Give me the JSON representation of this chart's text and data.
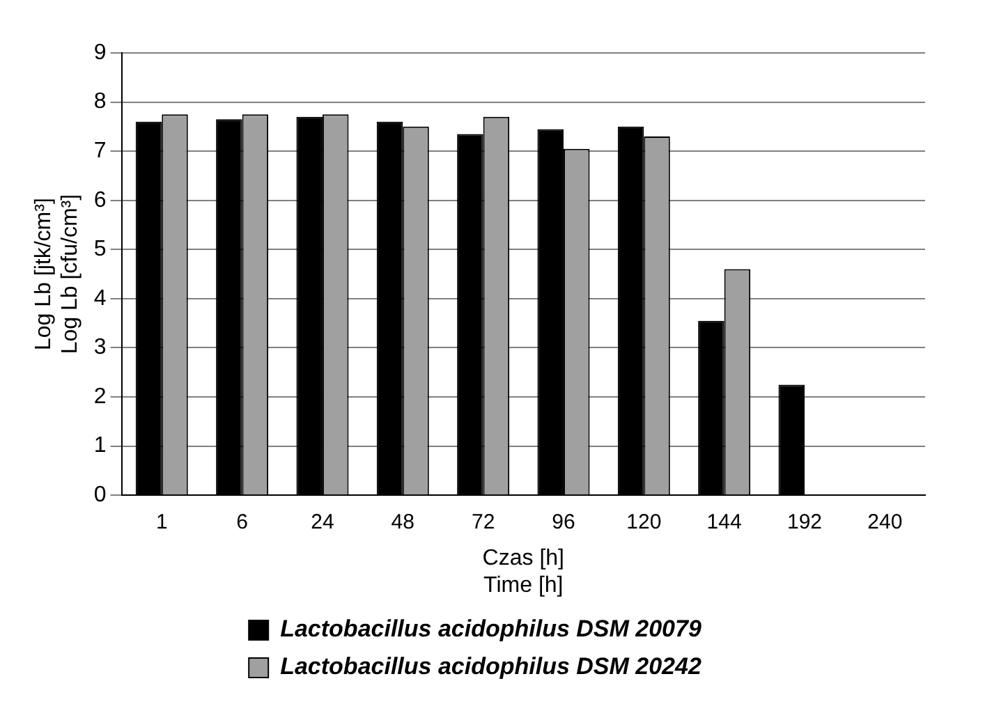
{
  "chart_data": {
    "type": "bar",
    "xlabel": "Czas [h]\nTime [h]",
    "ylabel": "Log Lb [jtk/cm³]\nLog Lb [cfu/cm³]",
    "categories": [
      "1",
      "6",
      "24",
      "48",
      "72",
      "96",
      "120",
      "144",
      "192",
      "240"
    ],
    "series": [
      {
        "name": "Lactobacillus acidophilus DSM 20079",
        "color": "#000000",
        "values": [
          7.6,
          7.65,
          7.7,
          7.6,
          7.35,
          7.45,
          7.5,
          3.55,
          2.25,
          null
        ]
      },
      {
        "name": "Lactobacillus acidophilus DSM 20242",
        "color": "#a0a0a0",
        "values": [
          7.75,
          7.75,
          7.75,
          7.5,
          7.7,
          7.05,
          7.3,
          4.6,
          null,
          null
        ]
      }
    ],
    "ylim": [
      0,
      9
    ],
    "yticks": [
      0,
      1,
      2,
      3,
      4,
      5,
      6,
      7,
      8,
      9
    ],
    "grid": "y",
    "legend": "bottom"
  }
}
